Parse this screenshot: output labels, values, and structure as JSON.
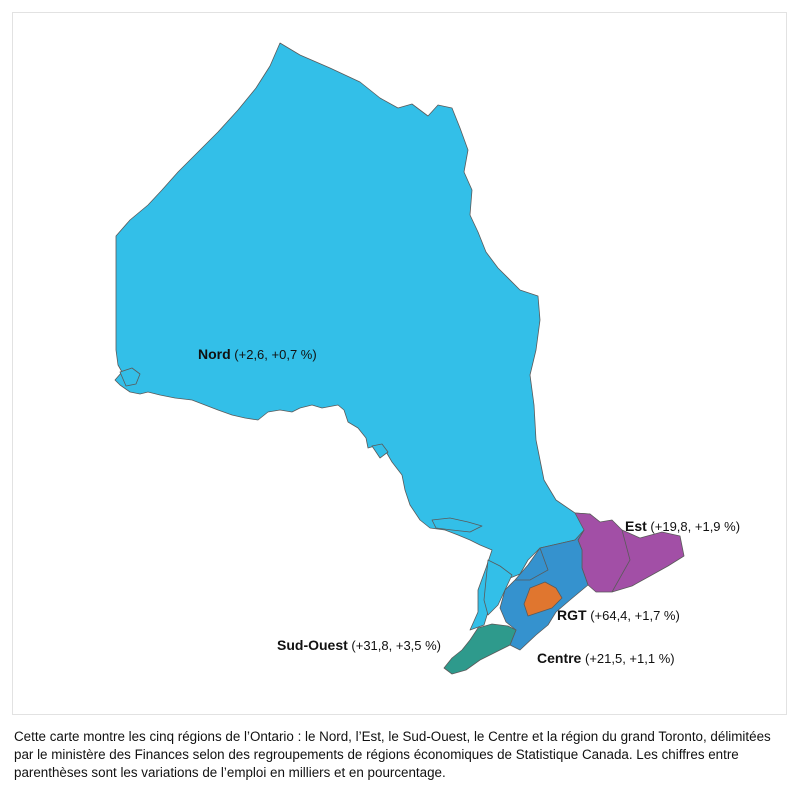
{
  "colors": {
    "nord": "#33bfe8",
    "est": "#a24fa6",
    "centre": "#3592ce",
    "rgt": "#e0762f",
    "sud_ouest": "#2e9a8c",
    "border": "#5a5a5a"
  },
  "regions": [
    {
      "id": "nord",
      "name": "Nord",
      "values": "(+2,6, +0,7 %)"
    },
    {
      "id": "est",
      "name": "Est",
      "values": "(+19,8, +1,9 %)"
    },
    {
      "id": "rgt",
      "name": "RGT",
      "values": "(+64,4, +1,7 %)"
    },
    {
      "id": "sud_ouest",
      "name": "Sud-Ouest",
      "values": "(+31,8, +3,5 %)"
    },
    {
      "id": "centre",
      "name": "Centre",
      "values": "(+21,5, +1,1 %)"
    }
  ],
  "caption": "Cette carte montre les cinq régions de l’Ontario : le Nord, l’Est, le Sud-Ouest, le Centre et la région du grand Toronto, délimitées par le ministère des Finances selon des regroupements de régions économiques de Statistique Canada. Les chiffres entre parenthèses sont les variations de l’emploi en milliers et en pourcentage."
}
